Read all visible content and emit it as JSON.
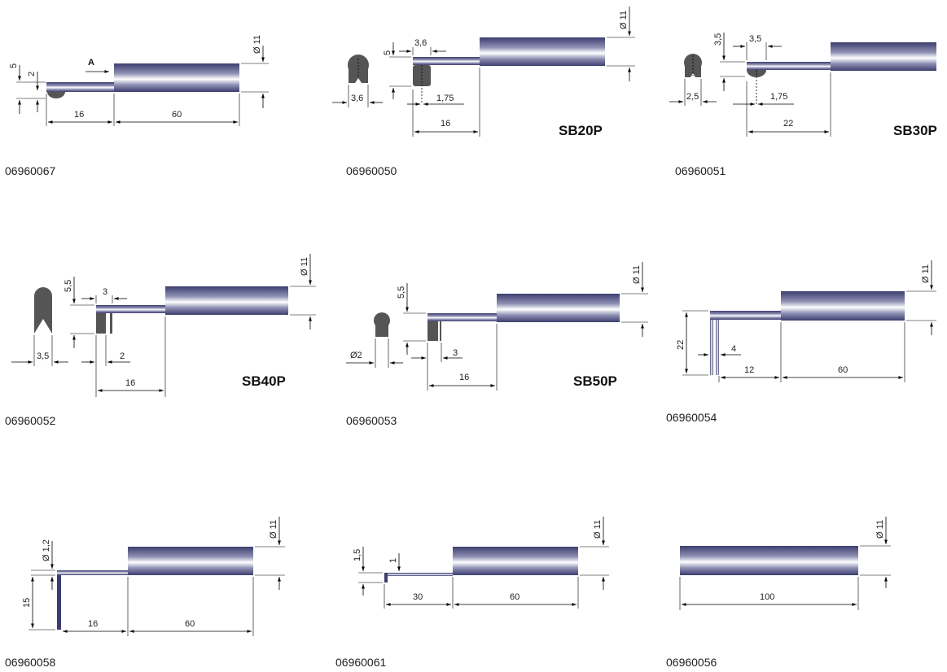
{
  "colors": {
    "shaft_dark": "#3d3e6e",
    "shaft_light": "#ffffff",
    "tip": "#555555"
  },
  "products": [
    {
      "code": "06960067",
      "model": "",
      "view_label": "A",
      "dims": [
        "5",
        "2",
        "16",
        "60",
        "Ø 11"
      ]
    },
    {
      "code": "06960050",
      "model": "SB20P",
      "dims": [
        "3,6",
        "5",
        "3,6",
        "1,75",
        "16",
        "Ø 11"
      ]
    },
    {
      "code": "06960051",
      "model": "SB30P",
      "dims": [
        "3,5",
        "3,5",
        "2,5",
        "1,75",
        "22"
      ]
    },
    {
      "code": "06960052",
      "model": "SB40P",
      "dims": [
        "5,5",
        "3",
        "3,5",
        "2",
        "16",
        "Ø 11"
      ]
    },
    {
      "code": "06960053",
      "model": "SB50P",
      "dims": [
        "5,5",
        "Ø2",
        "3",
        "16",
        "Ø 11"
      ]
    },
    {
      "code": "06960054",
      "model": "",
      "dims": [
        "22",
        "4",
        "12",
        "60",
        "Ø 11"
      ]
    },
    {
      "code": "06960058",
      "model": "",
      "dims": [
        "Ø 1,2",
        "15",
        "16",
        "60",
        "Ø 11"
      ]
    },
    {
      "code": "06960061",
      "model": "",
      "dims": [
        "1,5",
        "1",
        "30",
        "60",
        "Ø 11"
      ]
    },
    {
      "code": "06960056",
      "model": "",
      "dims": [
        "100",
        "Ø 11"
      ]
    }
  ]
}
